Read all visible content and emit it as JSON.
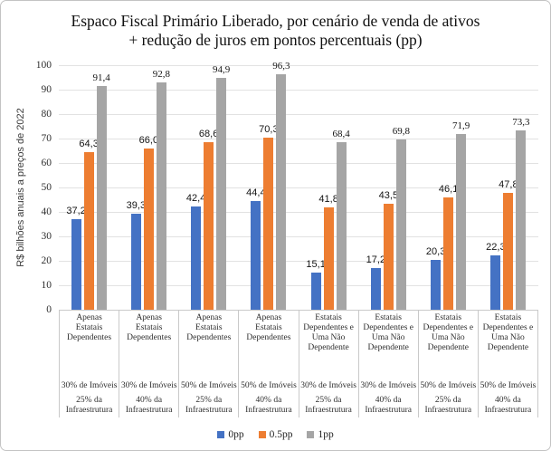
{
  "chart_data": {
    "type": "bar",
    "title": "Espaco Fiscal Primário Liberado, por cenário de venda de ativos + redução de juros em pontos percentuais (pp)",
    "title_lines": [
      "Espaco Fiscal Primário Liberado, por cenário de venda de ativos",
      "+ redução de juros em pontos percentuais (pp)"
    ],
    "ylabel": "R$ bilhões anuais a preços de 2022",
    "xlabel": "",
    "ylim": [
      0,
      100
    ],
    "yticks": [
      0,
      10,
      20,
      30,
      40,
      50,
      60,
      70,
      80,
      90,
      100
    ],
    "grid": true,
    "legend_position": "bottom",
    "decimal_style": "comma",
    "categories": [
      {
        "scenario": "Apenas Estatais Dependentes",
        "imoveis": "30% de Imóveis",
        "infraestrutura": "25% da Infraestrutura"
      },
      {
        "scenario": "Apenas Estatais Dependentes",
        "imoveis": "30% de Imóveis",
        "infraestrutura": "40% da Infraestrutura"
      },
      {
        "scenario": "Apenas Estatais Dependentes",
        "imoveis": "50% de Imóveis",
        "infraestrutura": "25% da Infraestrutura"
      },
      {
        "scenario": "Apenas Estatais Dependentes",
        "imoveis": "50% de Imóveis",
        "infraestrutura": "40% da Infraestrutura"
      },
      {
        "scenario": "Estatais Dependentes e Uma Não Dependente",
        "imoveis": "30% de Imóveis",
        "infraestrutura": "25% da Infraestrutura"
      },
      {
        "scenario": "Estatais Dependentes e Uma Não Dependente",
        "imoveis": "30% de Imóveis",
        "infraestrutura": "40% da Infraestrutura"
      },
      {
        "scenario": "Estatais Dependentes e Uma Não Dependente",
        "imoveis": "50% de Imóveis",
        "infraestrutura": "25% da Infraestrutura"
      },
      {
        "scenario": "Estatais Dependentes e Uma Não Dependente",
        "imoveis": "50% de Imóveis",
        "infraestrutura": "40% da Infraestrutura"
      }
    ],
    "series": [
      {
        "name": "0pp",
        "color": "#4472C4",
        "values": [
          37.2,
          39.3,
          42.4,
          44.4,
          15.1,
          17.2,
          20.3,
          22.3
        ],
        "labels": [
          "37,2",
          "39,3",
          "42,4",
          "44,4",
          "15,1",
          "17,2",
          "20,3",
          "22,3"
        ]
      },
      {
        "name": "0.5pp",
        "color": "#ED7D31",
        "values": [
          64.3,
          66.0,
          68.6,
          70.3,
          41.8,
          43.5,
          46.1,
          47.8
        ],
        "labels": [
          "64,3",
          "66,0",
          "68,6",
          "70,3",
          "41,8",
          "43,5",
          "46,1",
          "47,8"
        ]
      },
      {
        "name": "1pp",
        "color": "#A5A5A5",
        "values": [
          91.4,
          92.8,
          94.9,
          96.3,
          68.4,
          69.8,
          71.9,
          73.3
        ],
        "labels": [
          "91,4",
          "92,8",
          "94,9",
          "96,3",
          "68,4",
          "69,8",
          "71,9",
          "73,3"
        ]
      }
    ]
  }
}
